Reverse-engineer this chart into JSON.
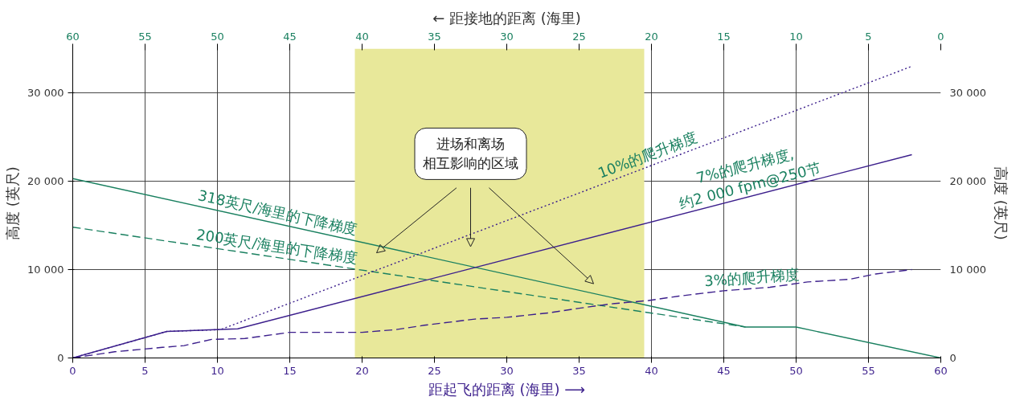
{
  "chart_data": {
    "type": "line",
    "xlabel": "距起飞的距离 (海里) ⟶",
    "ylabel": "高度 (英尺)",
    "y2label": "高度 (英尺)",
    "x2label": "← 距接地的距离 (海里)",
    "xlim": [
      0,
      60
    ],
    "xticks": [
      0,
      5,
      10,
      15,
      20,
      25,
      30,
      35,
      40,
      45,
      50,
      55,
      60
    ],
    "x2lim": [
      60,
      0
    ],
    "x2ticks": [
      0,
      5,
      10,
      15,
      20,
      25,
      30,
      35,
      40,
      45,
      50,
      55,
      60
    ],
    "ylim": [
      0,
      35000
    ],
    "yticks": [
      0,
      {
        "value": 10000,
        "label": "10 000"
      },
      {
        "value": 20000,
        "label": "20 000"
      },
      {
        "value": 30000,
        "label": "30 000"
      }
    ],
    "y2lim": [
      0,
      35000
    ],
    "y2ticks": [
      0,
      {
        "value": 10000,
        "label": "10 000"
      },
      {
        "value": 20000,
        "label": "20 000"
      },
      {
        "value": 30000,
        "label": "30 000"
      }
    ],
    "grid": true,
    "series": [
      {
        "name": "318英尺/海里的下降梯度",
        "color": "#1a8060",
        "line_style": "solid",
        "x": [
          0,
          46.5,
          50,
          60
        ],
        "values": [
          20300,
          3500,
          3500,
          0
        ]
      },
      {
        "name": "200英尺/海里的下降梯度",
        "color": "#1a8060",
        "line_style": "dashed",
        "x": [
          0,
          46.5
        ],
        "values": [
          14800,
          3500
        ]
      },
      {
        "name": "10%的爬升梯度",
        "color": "#3c1f8c",
        "line_style": "dotted",
        "x": [
          0,
          6.5,
          10.2,
          58
        ],
        "values": [
          0,
          3000,
          3200,
          33000
        ]
      },
      {
        "name": "7%的爬升梯度,约2 000 fpm@250节",
        "color": "#3c1f8c",
        "line_style": "solid",
        "x": [
          0,
          6.5,
          11.4,
          58
        ],
        "values": [
          0,
          3000,
          3300,
          23000
        ]
      },
      {
        "name": "3%的爬升梯度",
        "color": "#3c1f8c",
        "line_style": "dashed",
        "x": [
          0,
          2.9,
          6.2,
          7.7,
          9.6,
          11.9,
          15,
          20,
          22.3,
          24.3,
          27.8,
          30,
          32.9,
          34.9,
          37.1,
          39.8,
          41.9,
          45,
          48.2,
          50.8,
          53.7,
          55.5,
          58
        ],
        "values": [
          0,
          700,
          1200,
          1400,
          2100,
          2200,
          2900,
          2900,
          3200,
          3700,
          4400,
          4600,
          5100,
          5600,
          6100,
          6500,
          7000,
          7600,
          8000,
          8600,
          8900,
          9500,
          10000
        ]
      }
    ],
    "bands": [
      {
        "axis": "x",
        "from": 19.5,
        "to": 39.5,
        "color": "#e8e89a",
        "label": "进场和离场相互影响的区域"
      }
    ]
  }
}
